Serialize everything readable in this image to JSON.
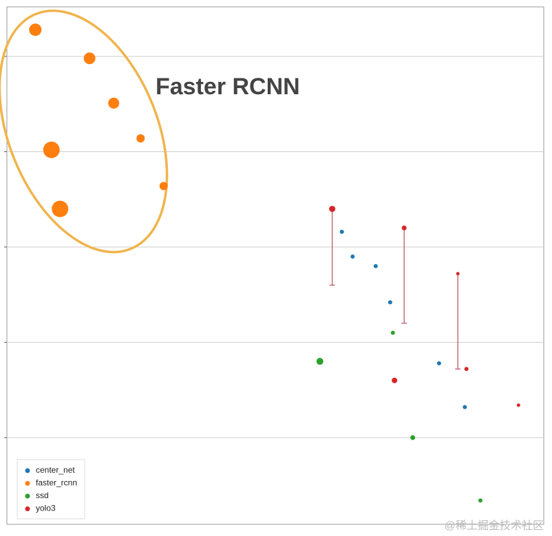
{
  "chart_data": {
    "type": "scatter",
    "annotation": "Faster RCNN",
    "watermark": "@稀土掘金技术社区",
    "xlim": [
      0,
      100
    ],
    "ylim": [
      0.09,
      5.52
    ],
    "yticks": [
      1,
      2,
      3,
      4,
      5
    ],
    "grid": true,
    "series": [
      {
        "name": "center_net",
        "color": "#1f77b4",
        "x": [
          62.4,
          64.4,
          68.7,
          71.4,
          80.5,
          85.3
        ],
        "values": [
          3.16,
          2.9,
          2.8,
          2.42,
          1.78,
          1.32
        ],
        "sizes": [
          3,
          3,
          3,
          3,
          3,
          3
        ]
      },
      {
        "name": "faster_rcnn",
        "color": "#ff7f0e",
        "x": [
          5.3,
          15.4,
          19.9,
          24.9,
          8.3,
          9.9,
          29.2
        ],
        "values": [
          5.28,
          4.98,
          4.51,
          4.14,
          4.02,
          3.4,
          3.64
        ],
        "sizes": [
          9,
          8.5,
          8,
          6,
          12,
          12,
          6
        ]
      },
      {
        "name": "ssd",
        "color": "#2ca02c",
        "x": [
          58.3,
          71.9,
          75.6,
          88.2
        ],
        "values": [
          1.8,
          2.1,
          1.0,
          0.34
        ],
        "sizes": [
          5,
          3,
          3.5,
          3
        ]
      },
      {
        "name": "yolo3",
        "color": "#d62728",
        "x": [
          60.6,
          74.0,
          84.0,
          72.2,
          85.6,
          95.3
        ],
        "values": [
          3.4,
          3.2,
          2.72,
          1.6,
          1.72,
          1.34
        ],
        "sizes": [
          4.5,
          3.5,
          2.5,
          4,
          3,
          2.5
        ],
        "errors": [
          0.8,
          1.0,
          1.0,
          null,
          null,
          null
        ]
      }
    ]
  }
}
